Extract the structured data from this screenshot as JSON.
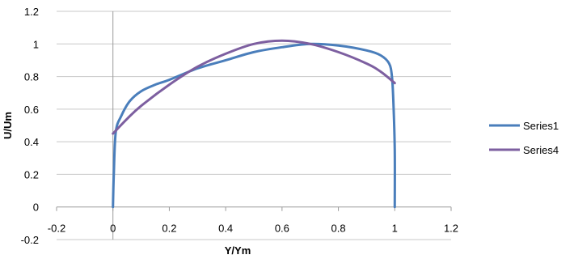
{
  "chart_data": {
    "type": "line",
    "title": "",
    "xlabel": "Y/Ym",
    "ylabel": "U/Um",
    "xlim": [
      -0.2,
      1.2
    ],
    "ylim": [
      -0.2,
      1.2
    ],
    "xticks": [
      "-0.2",
      "0",
      "0.2",
      "0.4",
      "0.6",
      "0.8",
      "1",
      "1.2"
    ],
    "yticks": [
      "-0.2",
      "0",
      "0.2",
      "0.4",
      "0.6",
      "0.8",
      "1",
      "1.2"
    ],
    "grid": "horizontal",
    "legend_position": "right",
    "series": [
      {
        "name": "Series1",
        "color": "#4a7ebb",
        "x": [
          0,
          0.003,
          0.01,
          0.03,
          0.06,
          0.1,
          0.15,
          0.2,
          0.3,
          0.4,
          0.5,
          0.6,
          0.7,
          0.8,
          0.9,
          0.95,
          0.98,
          0.99,
          0.995,
          1.0,
          1.0
        ],
        "y": [
          0,
          0.2,
          0.46,
          0.56,
          0.65,
          0.71,
          0.75,
          0.78,
          0.85,
          0.9,
          0.95,
          0.98,
          1.0,
          0.99,
          0.96,
          0.93,
          0.88,
          0.8,
          0.65,
          0.35,
          0
        ]
      },
      {
        "name": "Series4",
        "color": "#7d5fa0",
        "x": [
          0,
          0.05,
          0.1,
          0.2,
          0.3,
          0.4,
          0.5,
          0.6,
          0.7,
          0.8,
          0.9,
          0.95,
          1.0
        ],
        "y": [
          0.45,
          0.54,
          0.62,
          0.75,
          0.86,
          0.94,
          1.0,
          1.02,
          1.0,
          0.95,
          0.88,
          0.83,
          0.76
        ]
      }
    ]
  }
}
